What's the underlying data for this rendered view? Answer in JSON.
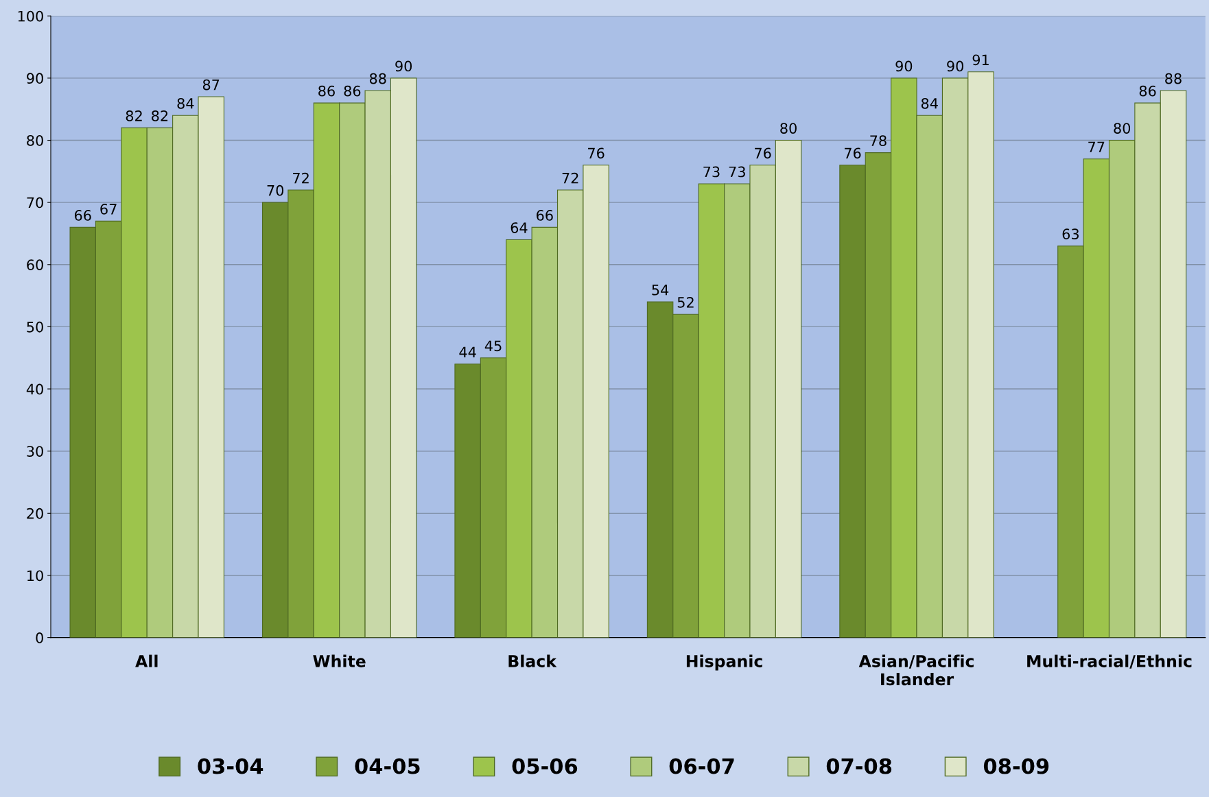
{
  "chart_data": {
    "type": "bar",
    "categories": [
      "All",
      "White",
      "Black",
      "Hispanic",
      "Asian/Pacific\nIslander",
      "Multi-racial/Ethnic"
    ],
    "series": [
      {
        "name": "03-04",
        "color": "#6a8a2c",
        "values": [
          66,
          70,
          44,
          54,
          76,
          null
        ]
      },
      {
        "name": "04-05",
        "color": "#80a23a",
        "values": [
          67,
          72,
          45,
          52,
          78,
          63
        ]
      },
      {
        "name": "05-06",
        "color": "#9dc44c",
        "values": [
          82,
          86,
          64,
          73,
          90,
          77
        ]
      },
      {
        "name": "06-07",
        "color": "#afcb7c",
        "values": [
          82,
          86,
          66,
          73,
          84,
          80
        ]
      },
      {
        "name": "07-08",
        "color": "#c8d8a8",
        "values": [
          84,
          88,
          72,
          76,
          90,
          86
        ]
      },
      {
        "name": "08-09",
        "color": "#dfe6c9",
        "values": [
          87,
          90,
          76,
          80,
          91,
          88
        ]
      }
    ],
    "ylim": [
      0,
      100
    ],
    "yticks": [
      0,
      10,
      20,
      30,
      40,
      50,
      60,
      70,
      80,
      90,
      100
    ],
    "grid": "y",
    "legend": "bottom",
    "data_labels": true
  }
}
